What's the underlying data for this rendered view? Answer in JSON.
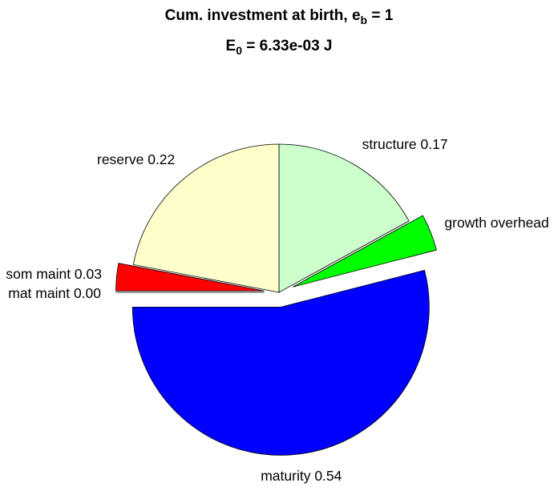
{
  "chart_data": {
    "type": "pie",
    "title": {
      "text": "Cum. investment at birth, e",
      "sub": "b",
      "tail": " = 1"
    },
    "subtitle": {
      "text": "E",
      "sub": "0",
      "tail": " = 6.33e-03 J"
    },
    "categories": [
      "structure",
      "growth overhead",
      "maturity",
      "mat maint",
      "som maint",
      "reserve"
    ],
    "values": [
      0.17,
      0.04,
      0.54,
      0.0,
      0.03,
      0.22
    ],
    "labels": [
      "structure 0.17",
      "growth overhead",
      "maturity 0.54",
      "mat maint 0.00",
      "som maint 0.03",
      "reserve 0.22"
    ],
    "colors": [
      "#ccffcc",
      "#00ff00",
      "#0000ff",
      "#ff00ff",
      "#ff0000",
      "#ffffcc"
    ],
    "explode": [
      false,
      true,
      true,
      true,
      true,
      false
    ]
  }
}
